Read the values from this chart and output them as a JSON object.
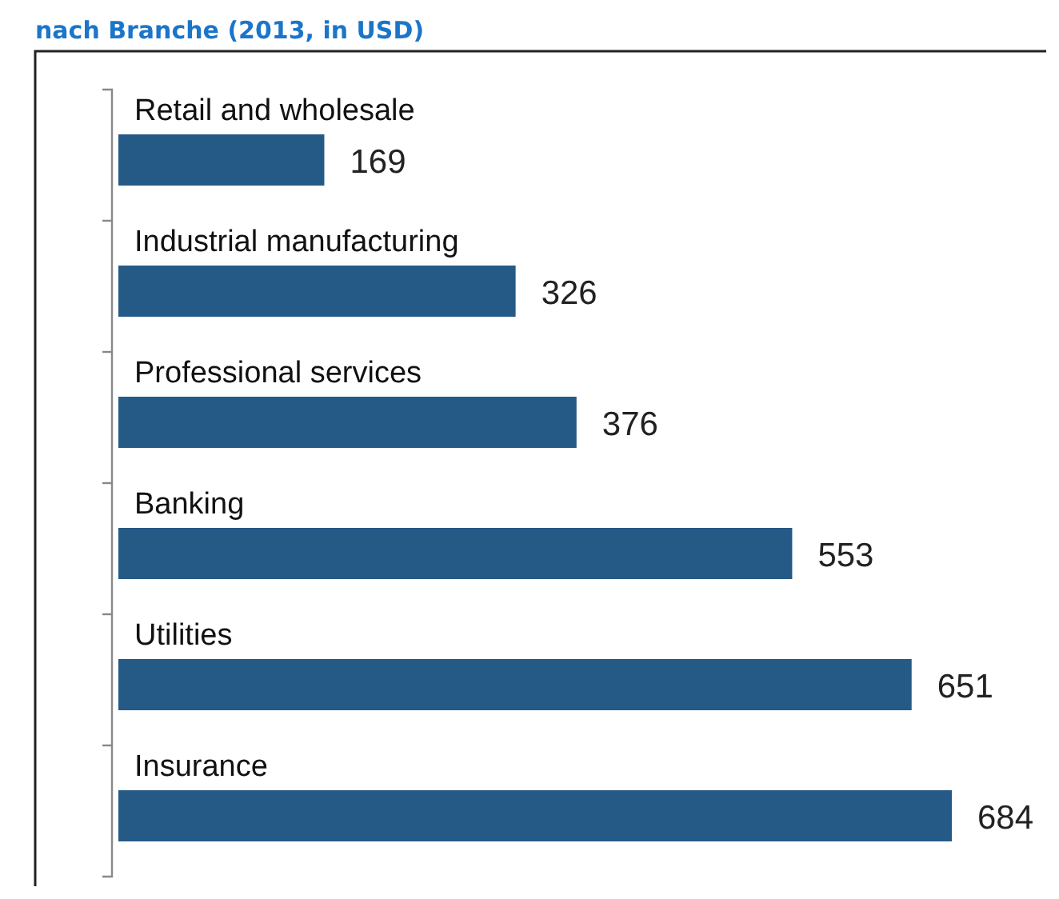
{
  "chart_data": {
    "type": "bar",
    "orientation": "horizontal",
    "title": "nach Branche (2013, in USD)",
    "categories": [
      "Retail and wholesale",
      "Industrial manufacturing",
      "Professional services",
      "Banking",
      "Utilities",
      "Insurance"
    ],
    "values": [
      169,
      326,
      376,
      553,
      651,
      684
    ],
    "color": "#255a87",
    "data_labels": true
  }
}
